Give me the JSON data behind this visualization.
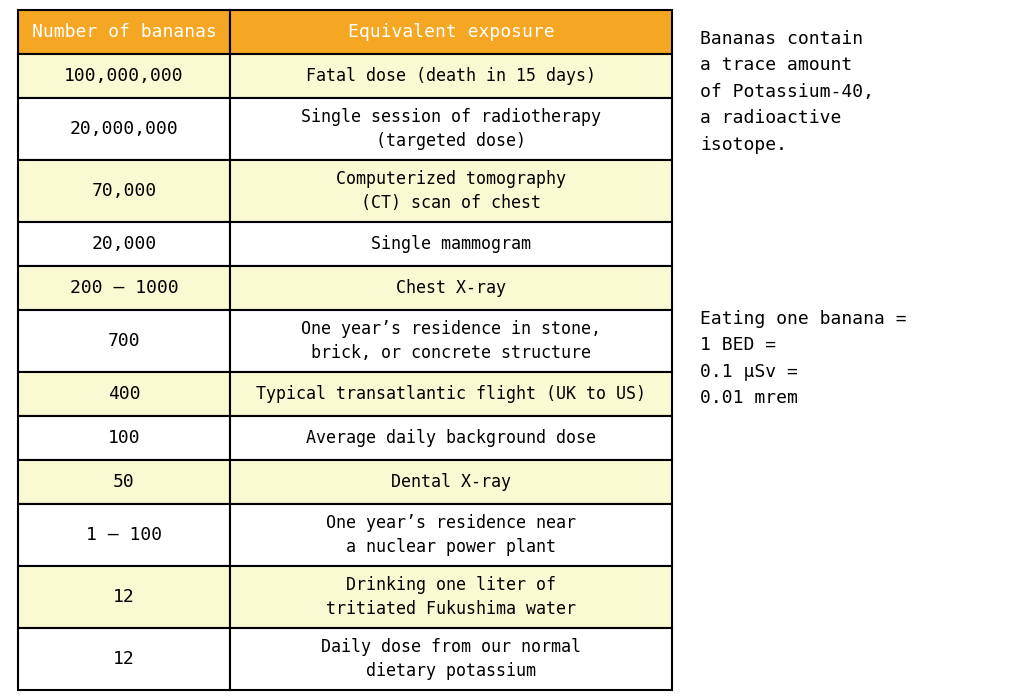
{
  "header": [
    "Number of bananas",
    "Equivalent exposure"
  ],
  "rows": [
    [
      "100,000,000",
      "Fatal dose (death in 15 days)"
    ],
    [
      "20,000,000",
      "Single session of radiotherapy\n(targeted dose)"
    ],
    [
      "70,000",
      "Computerized tomography\n(CT) scan of chest"
    ],
    [
      "20,000",
      "Single mammogram"
    ],
    [
      "200 – 1000",
      "Chest X-ray"
    ],
    [
      "700",
      "One year’s residence in stone,\nbrick, or concrete structure"
    ],
    [
      "400",
      "Typical transatlantic flight (UK to US)"
    ],
    [
      "100",
      "Average daily background dose"
    ],
    [
      "50",
      "Dental X-ray"
    ],
    [
      "1 – 100",
      "One year’s residence near\na nuclear power plant"
    ],
    [
      "12",
      "Drinking one liter of\ntritiated Fukushima water"
    ],
    [
      "12",
      "Daily dose from our normal\ndietary potassium"
    ]
  ],
  "row_colors": [
    "#FAFAD2",
    "#FFFFFF",
    "#FAFAD2",
    "#FFFFFF",
    "#FAFAD2",
    "#FFFFFF",
    "#FAFAD2",
    "#FFFFFF",
    "#FAFAD2",
    "#FFFFFF",
    "#FAFAD2",
    "#FFFFFF"
  ],
  "header_bg": "#F5A623",
  "header_text_color": "#FFFFFF",
  "border_color": "#000000",
  "text_color": "#000000",
  "side_text1": "Bananas contain\na trace amount\nof Potassium-40,\na radioactive\nisotope.",
  "side_text2": "Eating one banana =\n1 BED =\n0.1 μSv =\n0.01 mrem",
  "fig_width": 10.24,
  "fig_height": 6.96
}
